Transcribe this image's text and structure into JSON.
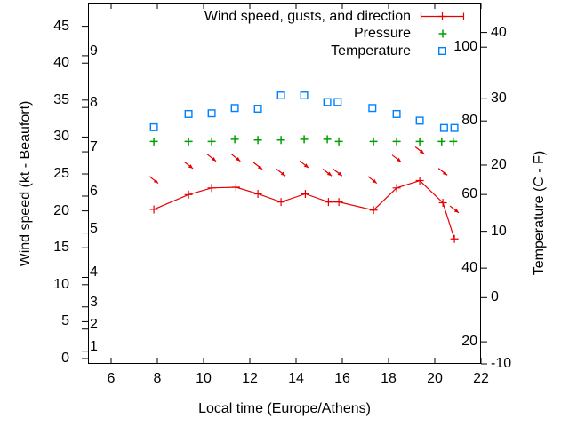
{
  "legend": {
    "position": "top-right",
    "items": [
      {
        "label": "Wind speed, gusts, and direction",
        "marker": "line-with-cross-and-endcaps",
        "color": "#e60000"
      },
      {
        "label": "Pressure",
        "marker": "plus",
        "color": "#00a000"
      },
      {
        "label": "Temperature",
        "marker": "open-square",
        "color": "#0080ff"
      }
    ]
  },
  "chart_data": {
    "type": "line",
    "x_axis": {
      "label": "Local time (Europe/Athens)",
      "range": [
        5,
        22
      ],
      "tick_values": [
        6,
        8,
        10,
        12,
        14,
        16,
        18,
        20,
        22
      ]
    },
    "y_axis_left": {
      "label": "Wind speed (kt - Beaufort)",
      "unit": "kt",
      "range": [
        -0.72,
        48.2
      ],
      "tick_values": [
        0,
        5,
        10,
        15,
        20,
        25,
        30,
        35,
        40,
        45
      ],
      "beaufort_scale": [
        [
          1,
          1
        ],
        [
          2,
          4
        ],
        [
          3,
          7
        ],
        [
          4,
          11
        ],
        [
          5,
          17
        ],
        [
          6,
          22
        ],
        [
          7,
          28
        ],
        [
          8,
          34
        ],
        [
          9,
          41
        ]
      ]
    },
    "y_axis_right": {
      "label": "Temperature (C - F)",
      "unit": "C",
      "range": [
        -10,
        44.5
      ],
      "tick_values_c": [
        -10,
        0,
        10,
        20,
        30,
        40
      ],
      "tick_values_f": [
        20,
        40,
        60,
        80,
        100
      ]
    },
    "grid": false,
    "series": [
      {
        "name": "Wind speed",
        "style": "line+cross",
        "axis": "kt",
        "color": "#e60000",
        "points": [
          [
            7.85,
            20.2
          ],
          [
            9.35,
            22.2
          ],
          [
            10.35,
            23.1
          ],
          [
            11.4,
            23.2
          ],
          [
            12.35,
            22.3
          ],
          [
            13.35,
            21.2
          ],
          [
            14.4,
            22.3
          ],
          [
            15.4,
            21.2
          ],
          [
            15.85,
            21.2
          ],
          [
            17.35,
            20.1
          ],
          [
            18.35,
            23.1
          ],
          [
            19.35,
            24.1
          ],
          [
            20.35,
            21.1
          ],
          [
            20.85,
            16.2
          ]
        ]
      },
      {
        "name": "Gusts with wind direction",
        "style": "arrow-down-right",
        "axis": "kt",
        "color": "#e60000",
        "arrow_angle_deg": 38,
        "points": [
          [
            7.85,
            24.2
          ],
          [
            9.35,
            26.2
          ],
          [
            10.35,
            27.2
          ],
          [
            11.4,
            27.2
          ],
          [
            12.35,
            26.1
          ],
          [
            13.35,
            25.2
          ],
          [
            14.35,
            26.3
          ],
          [
            15.35,
            25.2
          ],
          [
            15.8,
            25.2
          ],
          [
            17.3,
            24.2
          ],
          [
            18.35,
            27.1
          ],
          [
            19.35,
            28.2
          ],
          [
            20.35,
            25.3
          ],
          [
            20.85,
            20.2
          ]
        ]
      },
      {
        "name": "Pressure",
        "style": "plus",
        "axis": "kt",
        "color": "#00a000",
        "note": "pressure scale not shown on chart; values in left-axis units",
        "points": [
          [
            7.85,
            29.4
          ],
          [
            9.35,
            29.4
          ],
          [
            10.35,
            29.4
          ],
          [
            11.35,
            29.7
          ],
          [
            12.35,
            29.6
          ],
          [
            13.35,
            29.6
          ],
          [
            14.35,
            29.7
          ],
          [
            15.35,
            29.7
          ],
          [
            15.85,
            29.4
          ],
          [
            17.35,
            29.4
          ],
          [
            18.35,
            29.4
          ],
          [
            19.35,
            29.4
          ],
          [
            20.3,
            29.4
          ],
          [
            20.8,
            29.4
          ]
        ]
      },
      {
        "name": "Temperature",
        "style": "open-square",
        "axis": "C",
        "color": "#0080ff",
        "points": [
          [
            7.85,
            25.7
          ],
          [
            9.35,
            27.7
          ],
          [
            10.35,
            27.8
          ],
          [
            11.35,
            28.6
          ],
          [
            12.35,
            28.5
          ],
          [
            13.35,
            30.5
          ],
          [
            14.35,
            30.5
          ],
          [
            15.35,
            29.5
          ],
          [
            15.8,
            29.5
          ],
          [
            17.3,
            28.6
          ],
          [
            18.35,
            27.7
          ],
          [
            19.35,
            26.7
          ],
          [
            20.4,
            25.6
          ],
          [
            20.85,
            25.6
          ]
        ]
      }
    ]
  }
}
